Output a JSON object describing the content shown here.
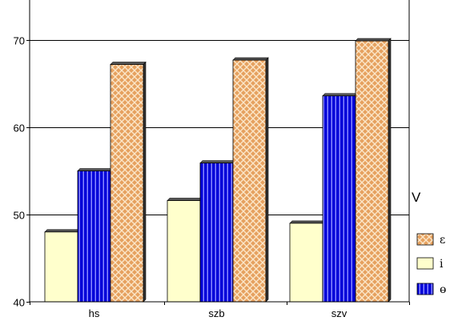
{
  "chart_data": {
    "type": "bar",
    "categories": [
      "hs",
      "szb",
      "szv"
    ],
    "series": [
      {
        "name": "i",
        "values": [
          48.0,
          51.6,
          49.0
        ],
        "color": "#ffffcc",
        "pattern": "solid"
      },
      {
        "name": "ө",
        "values": [
          55.0,
          55.9,
          63.6
        ],
        "color": "#0000cc",
        "pattern": "vertical-stripes"
      },
      {
        "name": "ɛ",
        "values": [
          67.2,
          67.7,
          69.9
        ],
        "color": "#e8a86a",
        "pattern": "crosshatch"
      }
    ],
    "legend_title": "V",
    "legend_order": [
      "ɛ",
      "i",
      "ө"
    ],
    "ylim": [
      40,
      70
    ],
    "yticks": [
      40,
      50,
      60,
      70
    ],
    "ytick_labels": [
      "40",
      "50",
      "60",
      "70"
    ],
    "grid": true,
    "legend_position": "right"
  }
}
